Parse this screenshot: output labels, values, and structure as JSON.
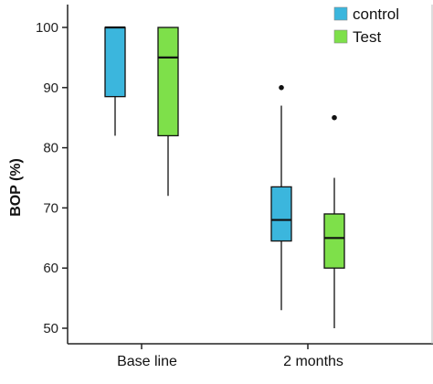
{
  "chart_data": {
    "type": "box",
    "ylabel": "BOP (%)",
    "ylim": [
      46,
      103
    ],
    "yticks": [
      50,
      60,
      70,
      80,
      90,
      100
    ],
    "categories": [
      "Base line",
      "2 months"
    ],
    "legend_position": "top-right",
    "grid": false,
    "series": [
      {
        "name": "control",
        "color": "#3bb6dd",
        "boxes": [
          {
            "whisker_low": 82,
            "q1": 88.5,
            "median": 100,
            "q3": 100,
            "whisker_high": 100,
            "outliers": []
          },
          {
            "whisker_low": 53,
            "q1": 64.5,
            "median": 68,
            "q3": 73.5,
            "whisker_high": 87,
            "outliers": [
              90
            ]
          }
        ]
      },
      {
        "name": "Test",
        "color": "#7ee04a",
        "boxes": [
          {
            "whisker_low": 72,
            "q1": 82,
            "median": 95,
            "q3": 100,
            "whisker_high": 100,
            "outliers": []
          },
          {
            "whisker_low": 50,
            "q1": 60,
            "median": 65,
            "q3": 69,
            "whisker_high": 75,
            "outliers": [
              85
            ]
          }
        ]
      }
    ]
  }
}
